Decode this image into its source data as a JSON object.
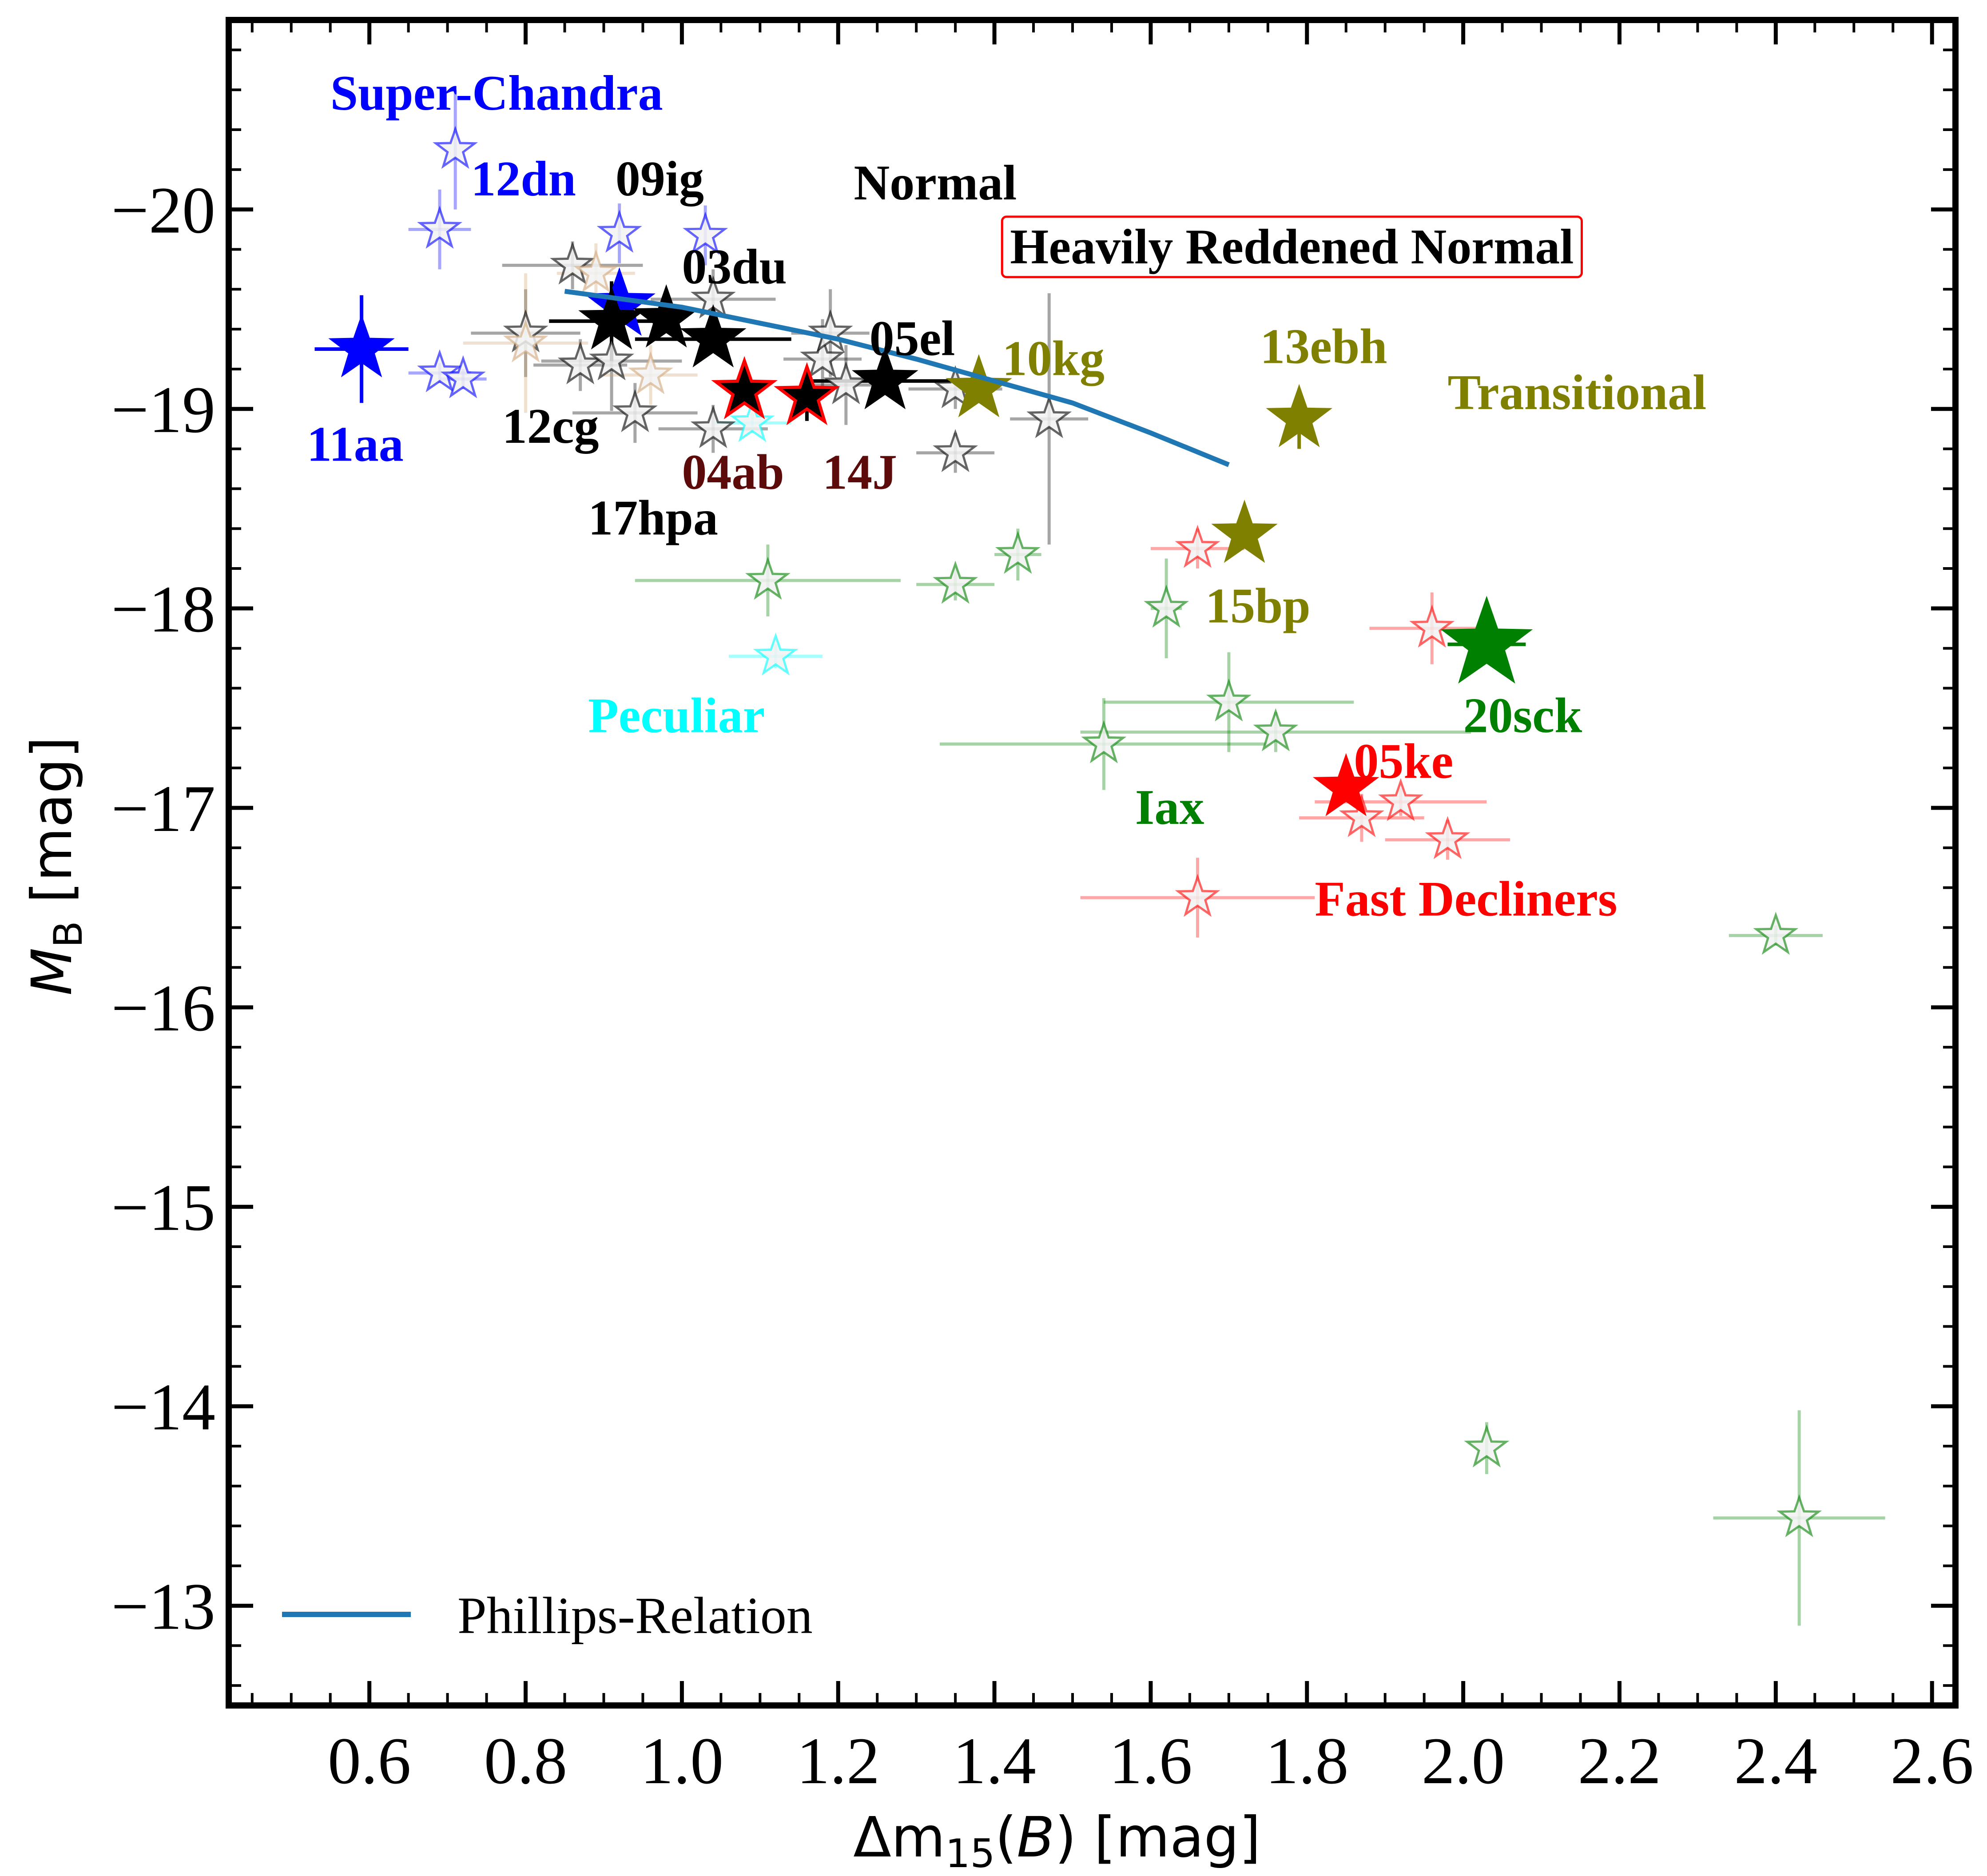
{
  "chart_data": {
    "type": "scatter",
    "title": "",
    "xlabel_parts": {
      "prefix": "Δm",
      "sub": "15",
      "open": "(",
      "var": "B",
      "close": ") [mag]"
    },
    "ylabel_parts": {
      "var": "M",
      "sub": "B",
      "unit": " [mag]"
    },
    "xlim": [
      0.42,
      2.63
    ],
    "ylim": [
      -12.5,
      -20.95
    ],
    "y_inverted": true,
    "grid": false,
    "x_ticks": [
      {
        "value": 0.6,
        "label": "0.6"
      },
      {
        "value": 0.8,
        "label": "0.8"
      },
      {
        "value": 1.0,
        "label": "1.0"
      },
      {
        "value": 1.2,
        "label": "1.2"
      },
      {
        "value": 1.4,
        "label": "1.4"
      },
      {
        "value": 1.6,
        "label": "1.6"
      },
      {
        "value": 1.8,
        "label": "1.8"
      },
      {
        "value": 2.0,
        "label": "2.0"
      },
      {
        "value": 2.2,
        "label": "2.2"
      },
      {
        "value": 2.4,
        "label": "2.4"
      },
      {
        "value": 2.6,
        "label": "2.6"
      }
    ],
    "y_ticks": [
      {
        "value": -20,
        "label": "−20"
      },
      {
        "value": -19,
        "label": "−19"
      },
      {
        "value": -18,
        "label": "−18"
      },
      {
        "value": -17,
        "label": "−17"
      },
      {
        "value": -16,
        "label": "−16"
      },
      {
        "value": -15,
        "label": "−15"
      },
      {
        "value": -14,
        "label": "−14"
      },
      {
        "value": -13,
        "label": "−13"
      }
    ],
    "x_minor_step": 0.05,
    "y_minor_step": 0.2,
    "legend": {
      "position": "lower-left",
      "entries": [
        {
          "label": "Phillips-Relation",
          "color": "#1f77b4"
        }
      ]
    },
    "phillips_relation": {
      "color": "#1f77b4",
      "x": [
        0.85,
        1.0,
        1.1,
        1.2,
        1.3,
        1.4,
        1.5,
        1.6,
        1.7
      ],
      "y": [
        -19.59,
        -19.51,
        -19.43,
        -19.35,
        -19.25,
        -19.14,
        -19.03,
        -18.88,
        -18.72
      ]
    },
    "colors": {
      "Super-Chandra": "#0000ff",
      "Normal": "#000000",
      "Transitional": "#808000",
      "Heavily Reddened Normal": "#5c0a0a",
      "Peculiar": "#00ffff",
      "Iax": "#008000",
      "Fast Decliners": "#ff0000",
      "Comparison-orange": "#d2a679"
    },
    "comparison_series": [
      {
        "class": "Super-Chandra",
        "points": [
          {
            "x": 0.71,
            "y": -20.3,
            "xerr": 0.0,
            "yerr": 0.3
          },
          {
            "x": 0.69,
            "y": -19.9,
            "xerr": 0.04,
            "yerr": 0.2
          },
          {
            "x": 0.69,
            "y": -19.18,
            "xerr": 0.04,
            "yerr": 0.05
          },
          {
            "x": 0.72,
            "y": -19.15,
            "xerr": 0.03,
            "yerr": 0.05
          },
          {
            "x": 1.03,
            "y": -19.87,
            "xerr": 0.0,
            "yerr": 0.15
          },
          {
            "x": 0.92,
            "y": -19.88,
            "xerr": 0.0,
            "yerr": 0.15
          }
        ]
      },
      {
        "class": "Normal",
        "points": [
          {
            "x": 0.86,
            "y": -19.72,
            "xerr": 0.09,
            "yerr": 0.12
          },
          {
            "x": 0.8,
            "y": -19.38,
            "xerr": 0.07,
            "yerr": 0.22
          },
          {
            "x": 0.87,
            "y": -19.22,
            "xerr": 0.06,
            "yerr": 0.13
          },
          {
            "x": 0.91,
            "y": -19.24,
            "xerr": 0.09,
            "yerr": 0.25
          },
          {
            "x": 0.94,
            "y": -18.98,
            "xerr": 0.08,
            "yerr": 0.15
          },
          {
            "x": 1.04,
            "y": -18.9,
            "xerr": 0.07,
            "yerr": 0.12
          },
          {
            "x": 1.04,
            "y": -19.55,
            "xerr": 0.08,
            "yerr": 0.15
          },
          {
            "x": 1.18,
            "y": -19.25,
            "xerr": 0.05,
            "yerr": 0.2
          },
          {
            "x": 1.19,
            "y": -19.38,
            "xerr": 0.05,
            "yerr": 0.22
          },
          {
            "x": 1.21,
            "y": -19.12,
            "xerr": 0.04,
            "yerr": 0.2
          },
          {
            "x": 1.35,
            "y": -19.1,
            "xerr": 0.06,
            "yerr": 0.1
          },
          {
            "x": 1.35,
            "y": -18.78,
            "xerr": 0.05,
            "yerr": 0.1
          },
          {
            "x": 1.47,
            "y": -18.95,
            "xerr": 0.05,
            "yerr": 0.63
          }
        ]
      },
      {
        "class": "Comparison-orange",
        "points": [
          {
            "x": 0.8,
            "y": -19.33,
            "xerr": 0.08,
            "yerr": 0.35
          },
          {
            "x": 0.89,
            "y": -19.68,
            "xerr": 0.05,
            "yerr": 0.15
          },
          {
            "x": 0.96,
            "y": -19.17,
            "xerr": 0.06,
            "yerr": 0.15
          }
        ]
      },
      {
        "class": "Peculiar",
        "points": [
          {
            "x": 1.09,
            "y": -18.93,
            "xerr": 0.05,
            "yerr": 0.05
          },
          {
            "x": 1.12,
            "y": -17.76,
            "xerr": 0.06,
            "yerr": 0.06
          }
        ]
      },
      {
        "class": "Iax",
        "points": [
          {
            "x": 1.11,
            "y": -18.14,
            "xerr": 0.17,
            "yerr": 0.18
          },
          {
            "x": 1.35,
            "y": -18.12,
            "xerr": 0.05,
            "yerr": 0.08
          },
          {
            "x": 1.43,
            "y": -18.27,
            "xerr": 0.03,
            "yerr": 0.13
          },
          {
            "x": 1.62,
            "y": -18.0,
            "xerr": 0.02,
            "yerr": 0.25
          },
          {
            "x": 1.7,
            "y": -17.53,
            "xerr": 0.16,
            "yerr": 0.25
          },
          {
            "x": 1.54,
            "y": -17.32,
            "xerr": 0.21,
            "yerr": 0.23
          },
          {
            "x": 1.76,
            "y": -17.38,
            "xerr": 0.25,
            "yerr": 0.1
          },
          {
            "x": 2.4,
            "y": -16.36,
            "xerr": 0.06,
            "yerr": 0.05
          },
          {
            "x": 2.03,
            "y": -13.79,
            "xerr": 0.0,
            "yerr": 0.13
          },
          {
            "x": 2.43,
            "y": -13.44,
            "xerr": 0.11,
            "yerr": 0.54
          }
        ]
      },
      {
        "class": "Fast Decliners",
        "points": [
          {
            "x": 1.66,
            "y": -18.3,
            "xerr": 0.06,
            "yerr": 0.1
          },
          {
            "x": 1.96,
            "y": -17.9,
            "xerr": 0.08,
            "yerr": 0.18
          },
          {
            "x": 1.92,
            "y": -17.03,
            "xerr": 0.11,
            "yerr": 0.07
          },
          {
            "x": 1.87,
            "y": -16.95,
            "xerr": 0.08,
            "yerr": 0.12
          },
          {
            "x": 1.98,
            "y": -16.84,
            "xerr": 0.08,
            "yerr": 0.1
          },
          {
            "x": 1.66,
            "y": -16.55,
            "xerr": 0.15,
            "yerr": 0.2
          }
        ]
      }
    ],
    "highlighted": [
      {
        "name": "11aa",
        "class": "Super-Chandra",
        "x": 0.59,
        "y": -19.3,
        "xerr": 0.06,
        "yerr": 0.27,
        "fill": "#0000ff",
        "edge": "#0000ff",
        "size": 1.0
      },
      {
        "name": "12dn",
        "class": "Super-Chandra",
        "x": 0.92,
        "y": -19.52,
        "xerr": 0.0,
        "yerr": 0.0,
        "fill": "#0000ff",
        "edge": "#0000ff",
        "size": 1.1
      },
      {
        "name": "09ig",
        "class": "Normal",
        "x": 0.91,
        "y": -19.44,
        "xerr": 0.08,
        "yerr": 0.2,
        "fill": "#000000",
        "edge": "#000000",
        "size": 1.0
      },
      {
        "name": "03du",
        "class": "Normal",
        "x": 0.98,
        "y": -19.45,
        "xerr": 0.0,
        "yerr": 0.0,
        "fill": "#000000",
        "edge": "#000000",
        "size": 1.0
      },
      {
        "name": "12cg",
        "class": "Normal",
        "x": 1.04,
        "y": -19.35,
        "xerr": 0.1,
        "yerr": 0.0,
        "fill": "#000000",
        "edge": "#000000",
        "size": 1.0
      },
      {
        "name": "17hpa",
        "class": "Normal",
        "x": 1.26,
        "y": -19.14,
        "xerr": 0.1,
        "yerr": 0.0,
        "fill": "#000000",
        "edge": "#000000",
        "size": 1.0
      },
      {
        "name": "04ab",
        "class": "Heavily Reddened Normal",
        "x": 1.08,
        "y": -19.09,
        "xerr": 0.0,
        "yerr": 0.0,
        "fill": "#000000",
        "edge": "#ff0000",
        "size": 1.0
      },
      {
        "name": "14J",
        "class": "Heavily Reddened Normal",
        "x": 1.16,
        "y": -19.06,
        "xerr": 0.0,
        "yerr": 0.12,
        "fill": "#000000",
        "edge": "#ff0000",
        "size": 1.0
      },
      {
        "name": "05el",
        "class": "Transitional",
        "x": 1.38,
        "y": -19.1,
        "xerr": 0.0,
        "yerr": 0.0,
        "fill": "#808000",
        "edge": "#808000",
        "size": 1.0
      },
      {
        "name": "13ebh",
        "class": "Transitional",
        "x": 1.79,
        "y": -18.95,
        "xerr": 0.0,
        "yerr": 0.15,
        "fill": "#808000",
        "edge": "#808000",
        "size": 1.0
      },
      {
        "name": "15bp",
        "class": "Transitional",
        "x": 1.72,
        "y": -18.37,
        "xerr": 0.0,
        "yerr": 0.0,
        "fill": "#808000",
        "edge": "#808000",
        "size": 1.0
      },
      {
        "name": "05ke",
        "class": "Fast Decliners",
        "x": 1.85,
        "y": -17.1,
        "xerr": 0.0,
        "yerr": 0.0,
        "fill": "#ff0000",
        "edge": "#ff0000",
        "size": 1.0
      },
      {
        "name": "20sck",
        "class": "Iax",
        "x": 2.03,
        "y": -17.82,
        "xerr": 0.05,
        "yerr": 0.0,
        "fill": "#008000",
        "edge": "#008000",
        "size": 1.45
      }
    ],
    "annotations": [
      {
        "text": "Super-Chandra",
        "x": 0.55,
        "y": -20.5,
        "color": "#0000ff"
      },
      {
        "text": "12dn",
        "x": 0.73,
        "y": -20.07,
        "color": "#0000ff"
      },
      {
        "text": "09ig",
        "x": 0.915,
        "y": -20.07,
        "color": "#000000"
      },
      {
        "text": "Normal",
        "x": 1.22,
        "y": -20.05,
        "color": "#000000"
      },
      {
        "text": "03du",
        "x": 1.0,
        "y": -19.63,
        "color": "#000000"
      },
      {
        "text": "05el",
        "x": 1.24,
        "y": -19.27,
        "color": "#000000"
      },
      {
        "text": "10kg",
        "x": 1.41,
        "y": -19.17,
        "color": "#808000"
      },
      {
        "text": "13ebh",
        "x": 1.74,
        "y": -19.23,
        "color": "#808000"
      },
      {
        "text": "Transitional",
        "x": 1.98,
        "y": -19.0,
        "color": "#808000"
      },
      {
        "text": "11aa",
        "x": 0.52,
        "y": -18.74,
        "color": "#0000ff"
      },
      {
        "text": "12cg",
        "x": 0.77,
        "y": -18.83,
        "color": "#000000"
      },
      {
        "text": "04ab",
        "x": 1.0,
        "y": -18.6,
        "color": "#5c0a0a"
      },
      {
        "text": "14J",
        "x": 1.18,
        "y": -18.6,
        "color": "#5c0a0a"
      },
      {
        "text": "17hpa",
        "x": 0.88,
        "y": -18.37,
        "color": "#000000"
      },
      {
        "text": "15bp",
        "x": 1.67,
        "y": -17.93,
        "color": "#808000"
      },
      {
        "text": "Peculiar",
        "x": 0.88,
        "y": -17.38,
        "color": "#00ffff"
      },
      {
        "text": "20sck",
        "x": 2.0,
        "y": -17.38,
        "color": "#008000"
      },
      {
        "text": "05ke",
        "x": 1.86,
        "y": -17.15,
        "color": "#ff0000"
      },
      {
        "text": "Iax",
        "x": 1.58,
        "y": -16.92,
        "color": "#008000"
      },
      {
        "text": "Fast Decliners",
        "x": 1.81,
        "y": -16.46,
        "color": "#ff0000"
      }
    ],
    "boxed_annotation": {
      "text": "Heavily Reddened Normal",
      "x": 1.42,
      "y": -19.73,
      "color": "#000000",
      "box_color": "#ff0000"
    }
  }
}
